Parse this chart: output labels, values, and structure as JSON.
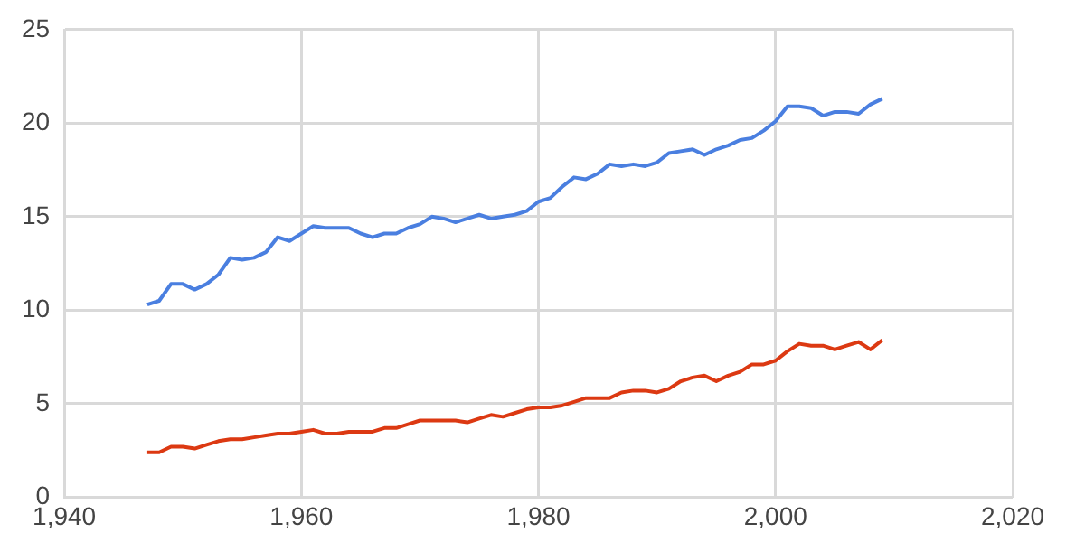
{
  "chart_data": {
    "type": "line",
    "x": [
      1947,
      1948,
      1949,
      1950,
      1951,
      1952,
      1953,
      1954,
      1955,
      1956,
      1957,
      1958,
      1959,
      1960,
      1961,
      1962,
      1963,
      1964,
      1965,
      1966,
      1967,
      1968,
      1969,
      1970,
      1971,
      1972,
      1973,
      1974,
      1975,
      1976,
      1977,
      1978,
      1979,
      1980,
      1981,
      1982,
      1983,
      1984,
      1985,
      1986,
      1987,
      1988,
      1989,
      1990,
      1991,
      1992,
      1993,
      1994,
      1995,
      1996,
      1997,
      1998,
      1999,
      2000,
      2001,
      2002,
      2003,
      2004,
      2005,
      2006,
      2007,
      2008,
      2009
    ],
    "series": [
      {
        "color": "#4a7fe0",
        "values": [
          10.3,
          10.5,
          11.4,
          11.4,
          11.1,
          11.4,
          11.9,
          12.8,
          12.7,
          12.8,
          13.1,
          13.9,
          13.7,
          14.1,
          14.5,
          14.4,
          14.4,
          14.4,
          14.1,
          13.9,
          14.1,
          14.1,
          14.4,
          14.6,
          15.0,
          14.9,
          14.7,
          14.9,
          15.1,
          14.9,
          15.0,
          15.1,
          15.3,
          15.8,
          16.0,
          16.6,
          17.1,
          17.0,
          17.3,
          17.8,
          17.7,
          17.8,
          17.7,
          17.9,
          18.4,
          18.5,
          18.6,
          18.3,
          18.6,
          18.8,
          19.1,
          19.2,
          19.6,
          20.1,
          20.9,
          20.9,
          20.8,
          20.4,
          20.6,
          20.6,
          20.5,
          21.0,
          21.3
        ]
      },
      {
        "color": "#dc3912",
        "values": [
          2.4,
          2.4,
          2.7,
          2.7,
          2.6,
          2.8,
          3.0,
          3.1,
          3.1,
          3.2,
          3.3,
          3.4,
          3.4,
          3.5,
          3.6,
          3.4,
          3.4,
          3.5,
          3.5,
          3.5,
          3.7,
          3.7,
          3.9,
          4.1,
          4.1,
          4.1,
          4.1,
          4.0,
          4.2,
          4.4,
          4.3,
          4.5,
          4.7,
          4.8,
          4.8,
          4.9,
          5.1,
          5.3,
          5.3,
          5.3,
          5.6,
          5.7,
          5.7,
          5.6,
          5.8,
          6.2,
          6.4,
          6.5,
          6.2,
          6.5,
          6.7,
          7.1,
          7.1,
          7.3,
          7.8,
          8.2,
          8.1,
          8.1,
          7.9,
          8.1,
          8.3,
          7.9,
          8.4
        ]
      }
    ],
    "xlim": [
      1940,
      2020
    ],
    "xticks": [
      {
        "value": 1940,
        "label": "1,940"
      },
      {
        "value": 1960,
        "label": "1,960"
      },
      {
        "value": 1980,
        "label": "1,980"
      },
      {
        "value": 2000,
        "label": "2,000"
      },
      {
        "value": 2020,
        "label": "2,020"
      }
    ],
    "ylim": [
      0,
      25
    ],
    "yticks": [
      0,
      5,
      10,
      15,
      20,
      25
    ],
    "grid": true,
    "legend": false,
    "marker": "none",
    "line_style": "solid"
  }
}
